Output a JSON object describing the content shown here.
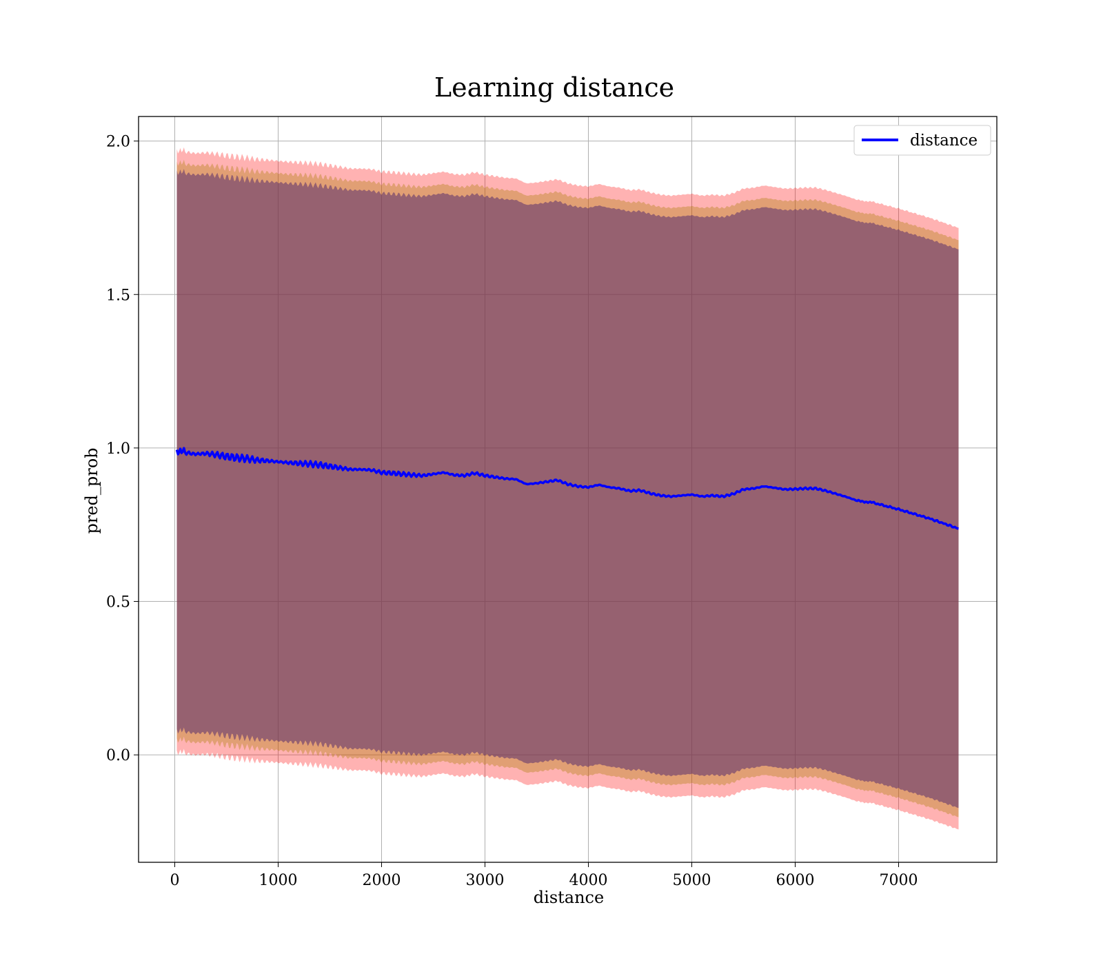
{
  "chart_data": {
    "type": "line",
    "title": "Learning distance",
    "xlabel": "distance",
    "ylabel": "pred_prob",
    "xlim": [
      -350,
      7950
    ],
    "ylim": [
      -0.35,
      2.08
    ],
    "xticks": [
      0,
      1000,
      2000,
      3000,
      4000,
      5000,
      6000,
      7000
    ],
    "yticks": [
      0.0,
      0.5,
      1.0,
      1.5,
      2.0
    ],
    "xtick_labels": [
      "0",
      "1000",
      "2000",
      "3000",
      "4000",
      "5000",
      "6000",
      "7000"
    ],
    "ytick_labels": [
      "0.0",
      "0.5",
      "1.0",
      "1.5",
      "2.0"
    ],
    "grid": true,
    "legend": {
      "position": "top-right",
      "entries": [
        "distance"
      ]
    },
    "colors": {
      "line": "#0000ff",
      "band_outer": "#ff0000",
      "band_middle": "#aa7a00",
      "band_inner": "#5a2e6e"
    },
    "series": [
      {
        "name": "distance",
        "x": [
          20,
          100,
          200,
          300,
          400,
          500,
          600,
          700,
          800,
          900,
          1000,
          1100,
          1200,
          1300,
          1400,
          1500,
          1600,
          1700,
          1800,
          1900,
          2000,
          2100,
          2200,
          2300,
          2400,
          2500,
          2600,
          2700,
          2800,
          2900,
          3000,
          3100,
          3200,
          3300,
          3400,
          3500,
          3600,
          3700,
          3800,
          3900,
          4000,
          4100,
          4200,
          4300,
          4400,
          4500,
          4600,
          4700,
          4800,
          4900,
          5000,
          5100,
          5200,
          5300,
          5400,
          5500,
          5600,
          5700,
          5800,
          5900,
          6000,
          6100,
          6200,
          6300,
          6400,
          6500,
          6600,
          6750,
          7000,
          7300,
          7580
        ],
        "y": [
          0.99,
          0.985,
          0.98,
          0.982,
          0.978,
          0.972,
          0.968,
          0.965,
          0.96,
          0.958,
          0.955,
          0.952,
          0.95,
          0.948,
          0.945,
          0.94,
          0.935,
          0.93,
          0.93,
          0.928,
          0.92,
          0.918,
          0.915,
          0.912,
          0.91,
          0.915,
          0.92,
          0.912,
          0.91,
          0.918,
          0.91,
          0.905,
          0.9,
          0.898,
          0.882,
          0.885,
          0.89,
          0.895,
          0.882,
          0.875,
          0.872,
          0.88,
          0.872,
          0.868,
          0.86,
          0.862,
          0.852,
          0.845,
          0.842,
          0.845,
          0.848,
          0.842,
          0.845,
          0.842,
          0.85,
          0.865,
          0.868,
          0.875,
          0.87,
          0.865,
          0.866,
          0.868,
          0.868,
          0.86,
          0.85,
          0.84,
          0.828,
          0.822,
          0.8,
          0.77,
          0.737
        ],
        "sd_inner": 0.91,
        "sd_middle": 0.94,
        "sd_outer": 0.98
      }
    ]
  }
}
